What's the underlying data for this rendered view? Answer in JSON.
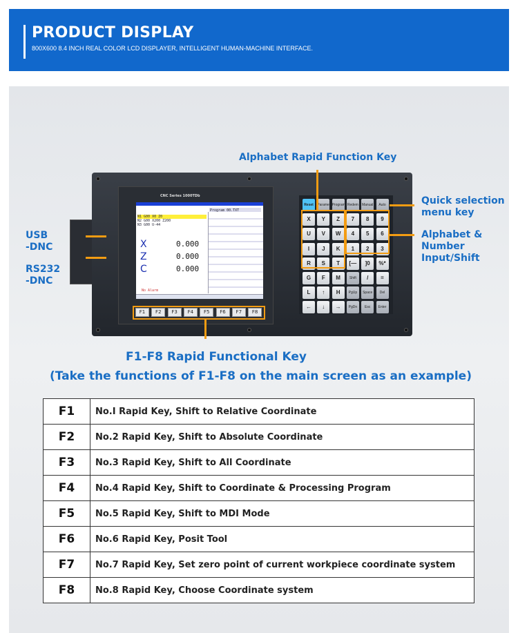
{
  "header": {
    "title": "PRODUCT DISPLAY",
    "subtitle": "800X600 8.4 INCH REAL COLOR LCD DISPLAYER, INTELLIGENT HUMAN-MACHINE INTERFACE."
  },
  "callouts": {
    "alphabet_rapid": "Alphabet Rapid Function Key",
    "quick_sel_1": "Quick selection",
    "quick_sel_2": "menu key",
    "alnum_1": "Alphabet &",
    "alnum_2": "Number",
    "alnum_3": "Input/Shift",
    "usb_1": "USB",
    "usb_2": "-DNC",
    "rs_1": "RS232",
    "rs_2": "-DNC",
    "fkeys_title": "F1-F8 Rapid Functional Key",
    "fkeys_note": "(Take the functions of F1-F8 on the main screen as an example)"
  },
  "device": {
    "series": "CNC Series 1000TDb",
    "program": "Program 00.TXT",
    "lines": [
      "N1 G00 X0 Z0",
      "N2 G00 X200 Z200",
      "N3 G00 U-44"
    ],
    "axes": [
      {
        "name": "X",
        "value": "0.000"
      },
      {
        "name": "Z",
        "value": "0.000"
      },
      {
        "name": "C",
        "value": "0.000"
      }
    ],
    "alarm": "No Alarm",
    "fkeys": [
      "F1",
      "F2",
      "F3",
      "F4",
      "F5",
      "F6",
      "F7",
      "F8"
    ],
    "keys": [
      "Reset",
      "Parameter",
      "Program",
      "Redem",
      "Manual",
      "Auto",
      "X",
      "Y",
      "Z",
      "7",
      "8",
      "9",
      "U",
      "V",
      "W",
      "4",
      "5",
      "6",
      "I",
      "J",
      "K",
      "1",
      "2",
      "3",
      "R",
      "S",
      "T",
      "[—",
      "]0",
      "%*",
      "G",
      "F",
      "M",
      "Shift",
      "/",
      "=",
      "L",
      "↑",
      "H",
      "PgUp",
      "Space",
      "Del",
      "←",
      "↓",
      "→",
      "PgDn",
      "Esc",
      "Enter"
    ]
  },
  "table": [
    {
      "key": "F1",
      "desc": "No.I Rapid Key, Shift to Relative Coordinate"
    },
    {
      "key": "F2",
      "desc": "No.2 Rapid Key, Shift to Absolute Coordinate"
    },
    {
      "key": "F3",
      "desc": "No.3 Rapid Key, Shift to All Coordinate"
    },
    {
      "key": "F4",
      "desc": "No.4 Rapid Key, Shift to Coordinate & Processing Program"
    },
    {
      "key": "F5",
      "desc": "No.5 Rapid Key, Shift to MDI Mode"
    },
    {
      "key": "F6",
      "desc": "No.6 Rapid Key, Posit Tool"
    },
    {
      "key": "F7",
      "desc": "No.7 Rapid Key, Set zero point of current workpiece coordinate system"
    },
    {
      "key": "F8",
      "desc": "No.8 Rapid Key, Choose Coordinate system"
    }
  ]
}
